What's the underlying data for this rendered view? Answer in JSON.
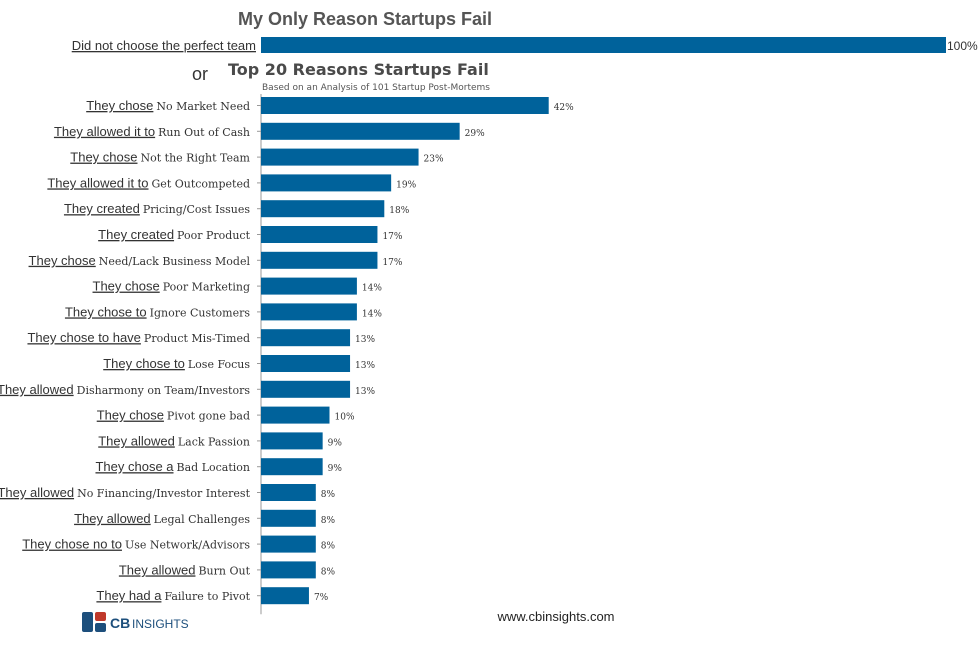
{
  "chart_data": [
    {
      "type": "bar",
      "orientation": "horizontal",
      "title": "My Only Reason Startups Fail",
      "categories": [
        "Did not choose the perfect team"
      ],
      "values": [
        100
      ],
      "value_labels": [
        "100%"
      ],
      "unit": "%",
      "xlim": [
        0,
        100
      ]
    },
    {
      "type": "bar",
      "orientation": "horizontal",
      "title": "Top 20 Reasons Startups Fail",
      "subtitle": "Based on an Analysis of 101 Startup Post-Mortems",
      "unit": "%",
      "xlim": [
        0,
        100
      ],
      "items": [
        {
          "prefix": "They chose",
          "reason": "No Market Need",
          "value": 42,
          "label": "42%"
        },
        {
          "prefix": "They allowed it to",
          "reason": "Run Out of Cash",
          "value": 29,
          "label": "29%"
        },
        {
          "prefix": "They chose",
          "reason": "Not the Right Team",
          "value": 23,
          "label": "23%"
        },
        {
          "prefix": "They allowed it to",
          "reason": "Get Outcompeted",
          "value": 19,
          "label": "19%"
        },
        {
          "prefix": "They created",
          "reason": "Pricing/Cost Issues",
          "value": 18,
          "label": "18%"
        },
        {
          "prefix": "They created",
          "reason": "Poor Product",
          "value": 17,
          "label": "17%"
        },
        {
          "prefix": "They chose",
          "reason": "Need/Lack Business Model",
          "value": 17,
          "label": "17%"
        },
        {
          "prefix": "They chose",
          "reason": "Poor Marketing",
          "value": 14,
          "label": "14%"
        },
        {
          "prefix": "They chose to",
          "reason": "Ignore Customers",
          "value": 14,
          "label": "14%"
        },
        {
          "prefix": "They chose to have",
          "reason": "Product Mis-Timed",
          "value": 13,
          "label": "13%"
        },
        {
          "prefix": "They chose to",
          "reason": "Lose Focus",
          "value": 13,
          "label": "13%"
        },
        {
          "prefix": "They allowed",
          "reason": "Disharmony on Team/Investors",
          "value": 13,
          "label": "13%"
        },
        {
          "prefix": "They chose",
          "reason": "Pivot gone bad",
          "value": 10,
          "label": "10%"
        },
        {
          "prefix": "They allowed",
          "reason": "Lack Passion",
          "value": 9,
          "label": "9%"
        },
        {
          "prefix": "They chose a",
          "reason": "Bad Location",
          "value": 9,
          "label": "9%"
        },
        {
          "prefix": "They allowed",
          "reason": "No Financing/Investor Interest",
          "value": 8,
          "label": "8%"
        },
        {
          "prefix": "They allowed",
          "reason": "Legal Challenges",
          "value": 8,
          "label": "8%"
        },
        {
          "prefix": "They chose no to",
          "reason": "Use Network/Advisors",
          "value": 8,
          "label": "8%"
        },
        {
          "prefix": "They allowed",
          "reason": "Burn Out",
          "value": 8,
          "label": "8%"
        },
        {
          "prefix": "They had a",
          "reason": "Failure to Pivot",
          "value": 7,
          "label": "7%"
        }
      ]
    }
  ],
  "separator_text": "or",
  "footer": {
    "url": "www.cbinsights.com",
    "logo_bold": "CB",
    "logo_text": "INSIGHTS"
  },
  "colors": {
    "bar": "#00629b",
    "axis": "#999999",
    "logo_dark": "#1d4f7c",
    "logo_red": "#c0392b"
  }
}
